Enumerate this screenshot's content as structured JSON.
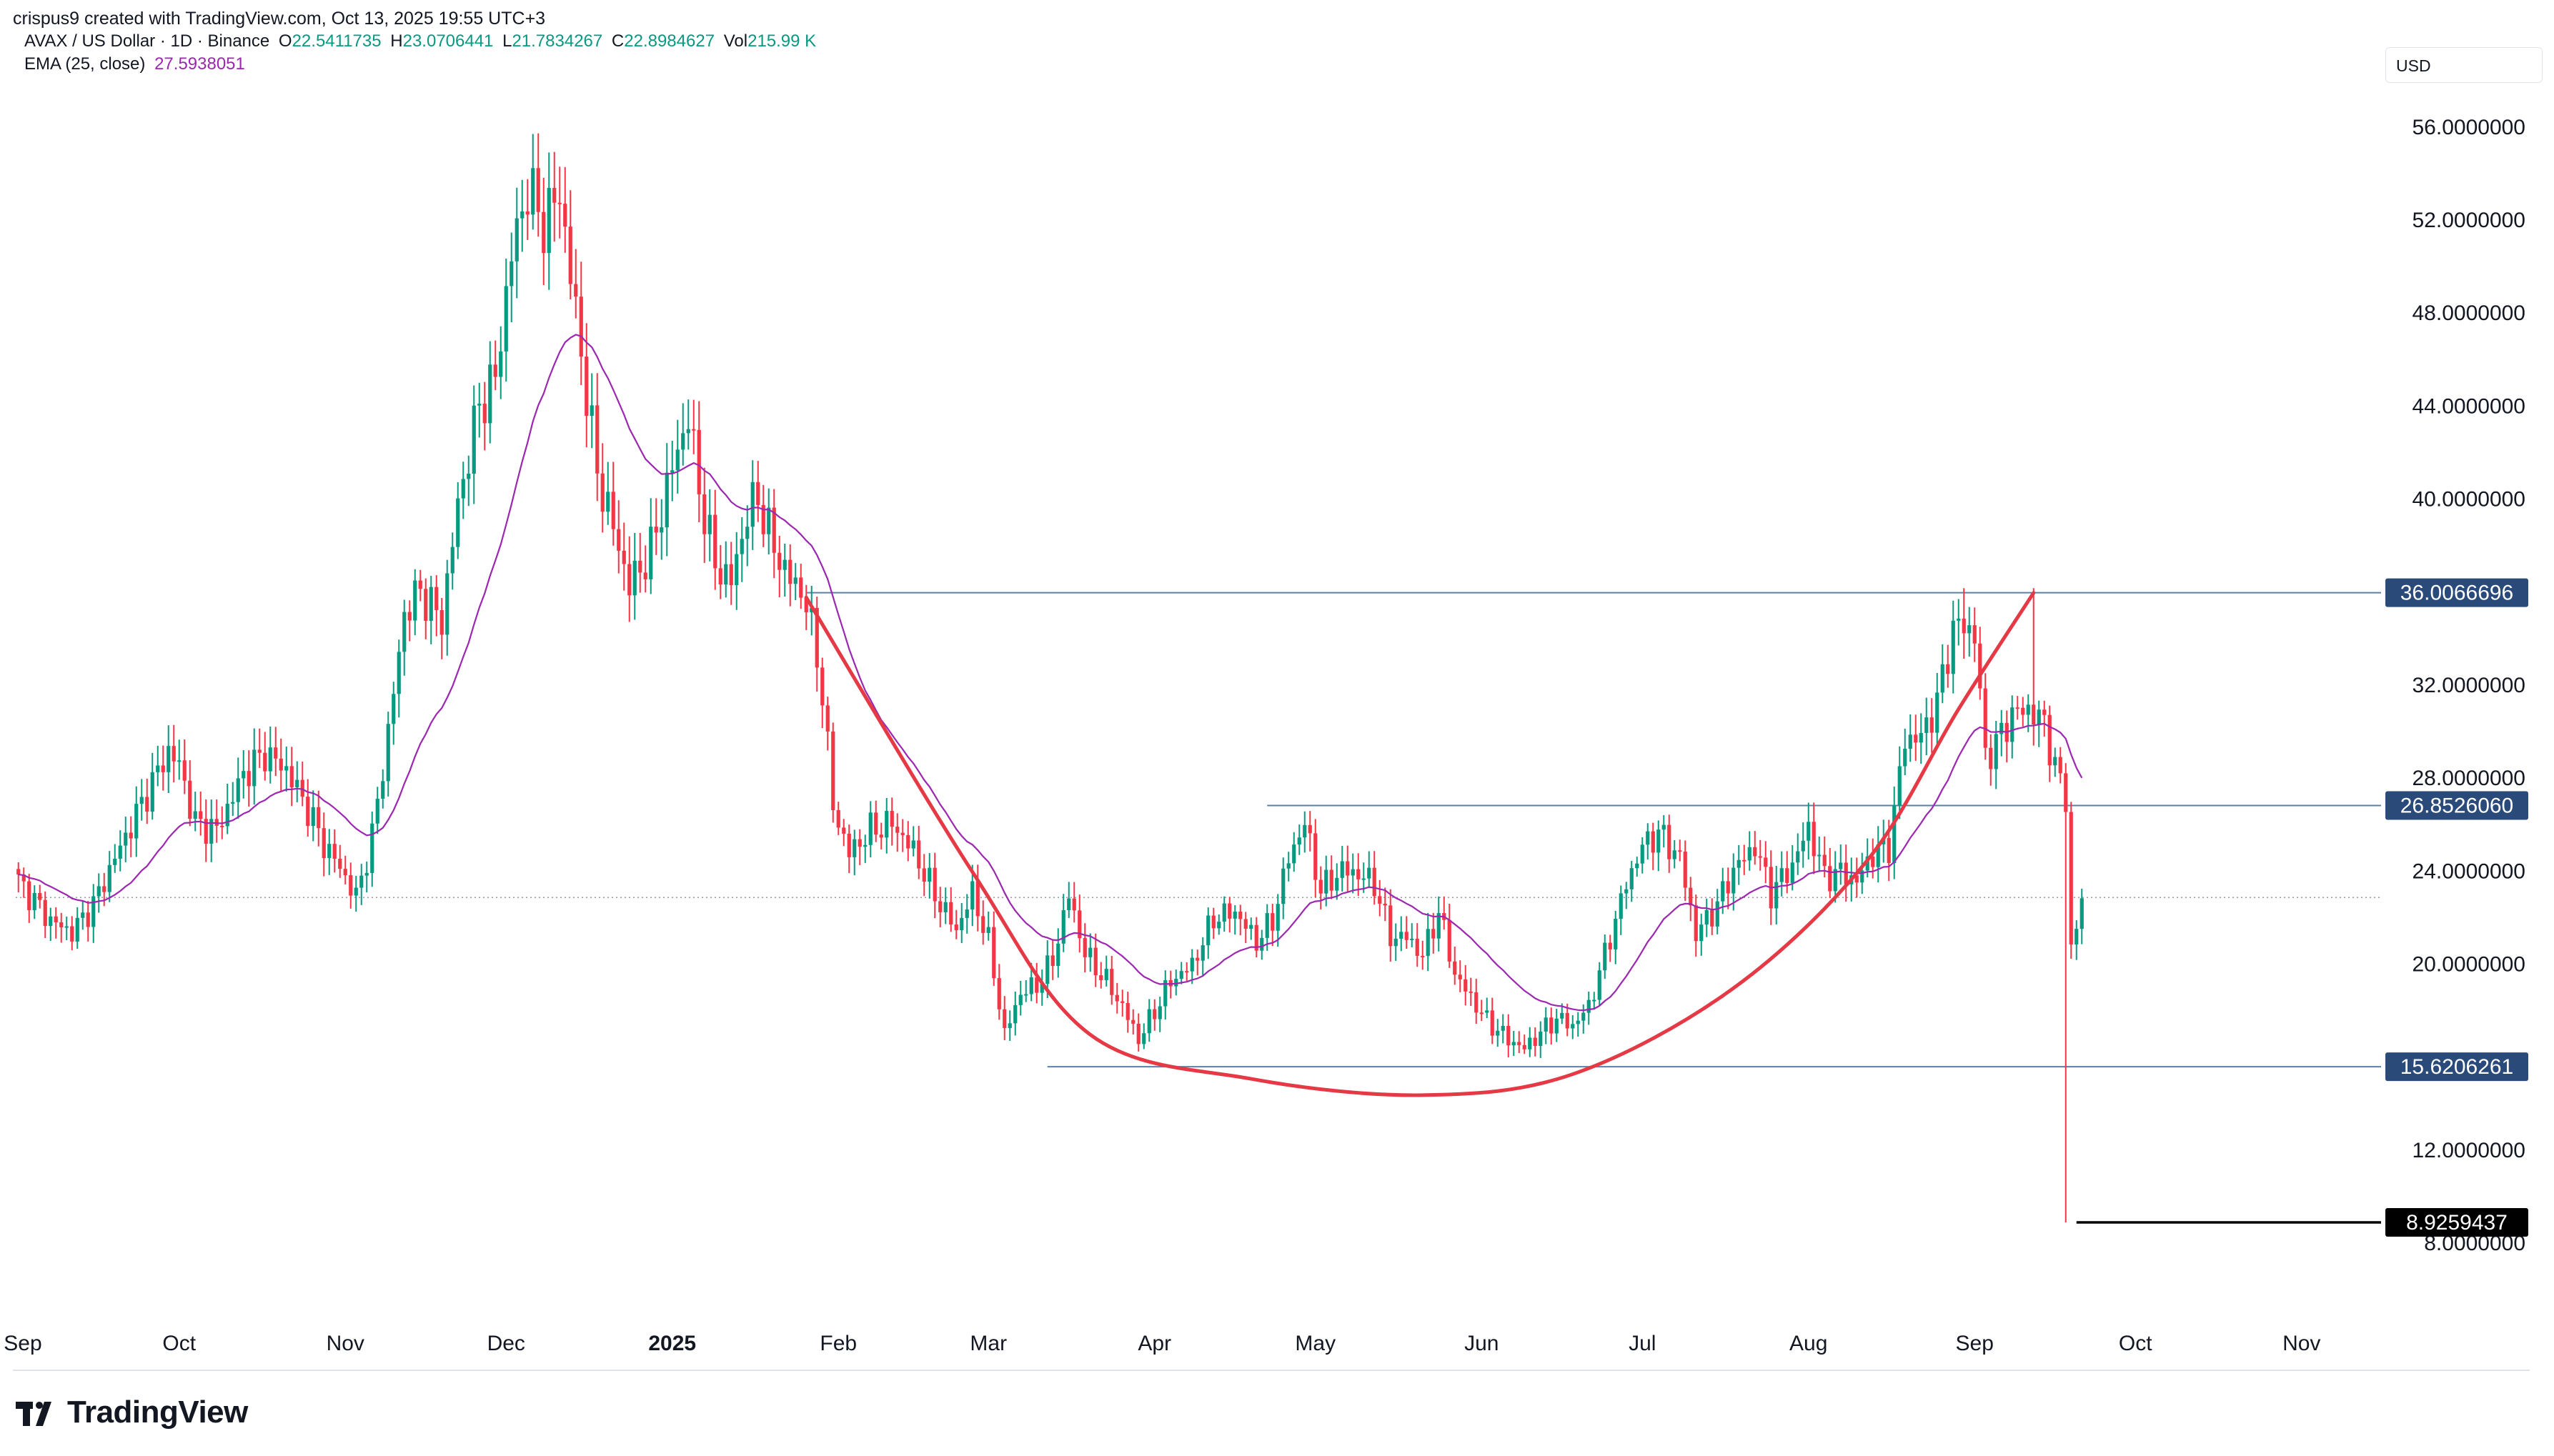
{
  "header": {
    "attribution": "crispus9 created with TradingView.com, Oct 13, 2025 19:55 UTC+3"
  },
  "legend": {
    "symbol": "AVAX / US Dollar · 1D · Binance",
    "open_label": "O",
    "open": "22.5411735",
    "high_label": "H",
    "high": "23.0706441",
    "low_label": "L",
    "low": "21.7834267",
    "close_label": "C",
    "close": "22.8984627",
    "vol_label": "Vol",
    "vol": "215.99 K",
    "ema_label": "EMA (25, close)",
    "ema": "27.5938051"
  },
  "currency": "USD",
  "logo": {
    "text": "TradingView",
    "icon": "tradingview-logo-icon"
  },
  "colors": {
    "up": "#089981",
    "down": "#f23645",
    "ema": "#9c27b0",
    "level": "#5b7fa6",
    "curve": "#e53945"
  },
  "chart_data": {
    "type": "candlestick",
    "y_range": [
      6.5,
      57.5
    ],
    "y_ticks": [
      "56.0000000",
      "52.0000000",
      "48.0000000",
      "44.0000000",
      "40.0000000",
      "32.0000000",
      "28.0000000",
      "24.0000000",
      "20.0000000",
      "12.0000000",
      "8.0000000"
    ],
    "x_labels": [
      "Sep",
      "Oct",
      "Nov",
      "Dec",
      "2025",
      "Feb",
      "Mar",
      "Apr",
      "May",
      "Jun",
      "Jul",
      "Aug",
      "Sep",
      "Oct",
      "Nov"
    ],
    "x_label_day_index": [
      0,
      30,
      61,
      91,
      122,
      153,
      181,
      212,
      242,
      273,
      303,
      334,
      365,
      395,
      426
    ],
    "current_price_line": 22.9,
    "levels": [
      {
        "label": "36.0066696",
        "value": 36.0067,
        "from_day": 147
      },
      {
        "label": "26.8526060",
        "value": 26.8526,
        "from_day": 233
      },
      {
        "label": "15.6206261",
        "value": 15.6206,
        "from_day": 192
      },
      {
        "label": "8.9259437",
        "value": 8.9259,
        "from_day": 392,
        "style": "black"
      }
    ],
    "annotation_curve": {
      "description": "rounded bottom",
      "points": [
        [
          147,
          35.8
        ],
        [
          178,
          24.0
        ],
        [
          200,
          17.0
        ],
        [
          230,
          15.1
        ],
        [
          262,
          14.4
        ],
        [
          290,
          15.3
        ],
        [
          320,
          19.0
        ],
        [
          345,
          24.5
        ],
        [
          362,
          31.0
        ],
        [
          376,
          36.0
        ]
      ]
    },
    "price_anchors": [
      [
        0,
        23.6
      ],
      [
        6,
        21.9
      ],
      [
        10,
        21.4
      ],
      [
        14,
        22.6
      ],
      [
        18,
        24.6
      ],
      [
        24,
        27.4
      ],
      [
        28,
        29.2
      ],
      [
        30,
        28.6
      ],
      [
        33,
        26.1
      ],
      [
        37,
        25.8
      ],
      [
        42,
        28.2
      ],
      [
        46,
        29.1
      ],
      [
        50,
        28.4
      ],
      [
        54,
        26.7
      ],
      [
        57,
        25.2
      ],
      [
        60,
        24.2
      ],
      [
        63,
        22.9
      ],
      [
        66,
        25.5
      ],
      [
        69,
        30.0
      ],
      [
        72,
        35.1
      ],
      [
        75,
        36.1
      ],
      [
        79,
        34.8
      ],
      [
        82,
        39.8
      ],
      [
        86,
        44.1
      ],
      [
        89,
        45.2
      ],
      [
        92,
        50.6
      ],
      [
        95,
        53.4
      ],
      [
        98,
        51.9
      ],
      [
        101,
        53.2
      ],
      [
        104,
        48.0
      ],
      [
        108,
        41.2
      ],
      [
        111,
        38.8
      ],
      [
        114,
        36.3
      ],
      [
        118,
        37.8
      ],
      [
        122,
        41.4
      ],
      [
        125,
        43.6
      ],
      [
        127,
        40.5
      ],
      [
        130,
        37.2
      ],
      [
        133,
        36.5
      ],
      [
        136,
        39.4
      ],
      [
        138,
        40.1
      ],
      [
        141,
        37.9
      ],
      [
        144,
        36.6
      ],
      [
        147,
        35.7
      ],
      [
        150,
        31.8
      ],
      [
        152,
        26.8
      ],
      [
        155,
        24.8
      ],
      [
        159,
        25.8
      ],
      [
        163,
        26.1
      ],
      [
        167,
        24.9
      ],
      [
        171,
        23.0
      ],
      [
        175,
        21.5
      ],
      [
        178,
        23.1
      ],
      [
        181,
        21.0
      ],
      [
        184,
        17.0
      ],
      [
        187,
        18.8
      ],
      [
        190,
        19.1
      ],
      [
        193,
        20.2
      ],
      [
        196,
        23.0
      ],
      [
        199,
        20.5
      ],
      [
        203,
        19.3
      ],
      [
        206,
        18.2
      ],
      [
        209,
        16.8
      ],
      [
        212,
        18.0
      ],
      [
        215,
        19.3
      ],
      [
        219,
        20.0
      ],
      [
        223,
        22.0
      ],
      [
        227,
        22.3
      ],
      [
        231,
        21.0
      ],
      [
        234,
        21.9
      ],
      [
        237,
        24.6
      ],
      [
        240,
        26.1
      ],
      [
        243,
        23.2
      ],
      [
        247,
        24.1
      ],
      [
        250,
        23.9
      ],
      [
        253,
        23.5
      ],
      [
        256,
        21.2
      ],
      [
        259,
        21.2
      ],
      [
        262,
        20.4
      ],
      [
        265,
        22.3
      ],
      [
        268,
        19.6
      ],
      [
        271,
        18.6
      ],
      [
        274,
        17.6
      ],
      [
        278,
        16.8
      ],
      [
        281,
        16.4
      ],
      [
        284,
        17.1
      ],
      [
        287,
        17.7
      ],
      [
        290,
        17.4
      ],
      [
        293,
        18.2
      ],
      [
        297,
        21.2
      ],
      [
        300,
        23.5
      ],
      [
        303,
        25.1
      ],
      [
        306,
        25.7
      ],
      [
        310,
        24.6
      ],
      [
        313,
        21.3
      ],
      [
        317,
        22.6
      ],
      [
        320,
        24.1
      ],
      [
        324,
        25.1
      ],
      [
        327,
        23.1
      ],
      [
        331,
        24.3
      ],
      [
        334,
        25.9
      ],
      [
        337,
        23.8
      ],
      [
        340,
        24.0
      ],
      [
        343,
        23.6
      ],
      [
        346,
        24.8
      ],
      [
        349,
        25.1
      ],
      [
        352,
        29.7
      ],
      [
        355,
        29.8
      ],
      [
        358,
        31.3
      ],
      [
        361,
        34.5
      ],
      [
        363,
        34.6
      ],
      [
        365,
        34.2
      ],
      [
        367,
        29.0
      ],
      [
        369,
        29.5
      ],
      [
        372,
        30.8
      ],
      [
        375,
        31.0
      ],
      [
        378,
        30.4
      ],
      [
        380,
        28.5
      ],
      [
        382,
        27.2
      ],
      [
        383,
        20.7
      ],
      [
        384,
        21.5
      ],
      [
        385,
        22.9
      ]
    ],
    "ema_last": 27.59
  }
}
